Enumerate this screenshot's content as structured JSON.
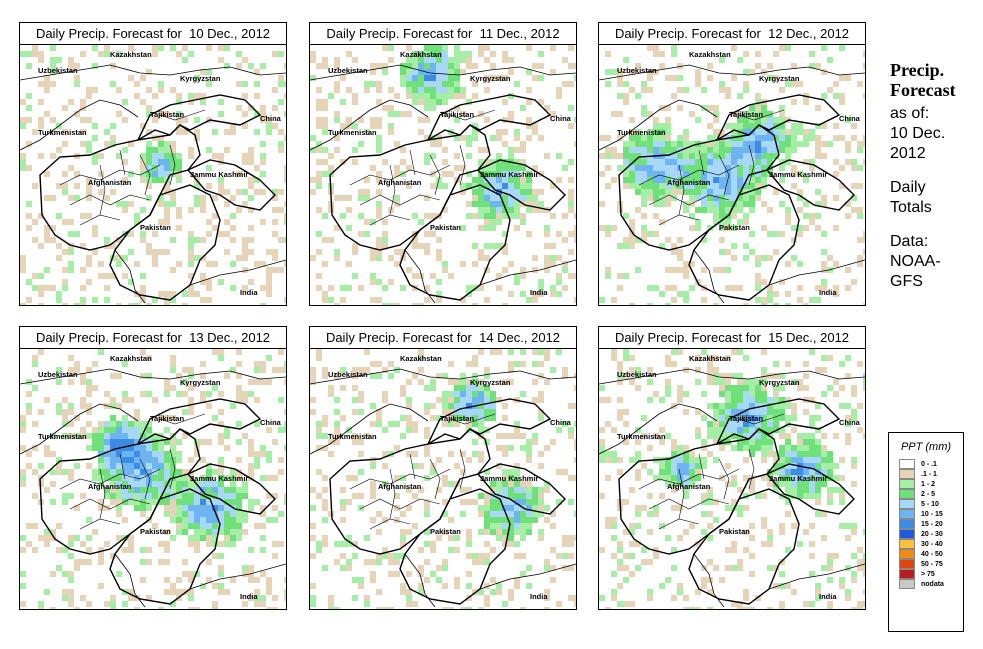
{
  "panels": [
    {
      "title": "Daily Precip. Forecast for  10 Dec., 2012",
      "intensity": 0
    },
    {
      "title": "Daily Precip. Forecast for  11 Dec., 2012",
      "intensity": 1
    },
    {
      "title": "Daily Precip. Forecast for  12 Dec., 2012",
      "intensity": 2
    },
    {
      "title": "Daily Precip. Forecast for  13 Dec., 2012",
      "intensity": 3
    },
    {
      "title": "Daily Precip. Forecast for  14 Dec., 2012",
      "intensity": 4
    },
    {
      "title": "Daily Precip. Forecast for  15 Dec., 2012",
      "intensity": 5
    }
  ],
  "map_labels": {
    "kazakhstan": "Kazakhstan",
    "uzbekistan": "Uzbekistan",
    "kyrgyzstan": "Kyrgyzstan",
    "tajikistan": "Tajikistan",
    "turkmenistan": "Turkmenistan",
    "china": "China",
    "afghanistan": "Afghanistan",
    "jammu_kashmir": "Jammu Kashmir",
    "pakistan": "Pakistan",
    "india": "India"
  },
  "side": {
    "title_line1": "Precip.",
    "title_line2": "Forecast",
    "asof_line1": "as of:",
    "asof_line2": "10 Dec.",
    "asof_line3": "2012",
    "totals_line1": "Daily",
    "totals_line2": "Totals",
    "data_line1": "Data:",
    "data_line2": "NOAA-",
    "data_line3": "GFS"
  },
  "legend": {
    "title": "PPT (mm)",
    "items": [
      {
        "label": "0 - .1",
        "color": "#ffffff"
      },
      {
        "label": ".1 - 1",
        "color": "#e6d4b8"
      },
      {
        "label": "1 - 2",
        "color": "#a6eea6"
      },
      {
        "label": "2 - 5",
        "color": "#6fe07a"
      },
      {
        "label": "5 - 10",
        "color": "#a8d8f8"
      },
      {
        "label": "10 - 15",
        "color": "#6eb4f0"
      },
      {
        "label": "15 - 20",
        "color": "#3c8ce6"
      },
      {
        "label": "20 - 30",
        "color": "#1e5adc"
      },
      {
        "label": "30 - 40",
        "color": "#f8c23c"
      },
      {
        "label": "40 - 50",
        "color": "#f08c14"
      },
      {
        "label": "50 - 75",
        "color": "#e04614"
      },
      {
        "label": "> 75",
        "color": "#b41e1e"
      },
      {
        "label": "nodata",
        "color": "#c8c8c8"
      }
    ]
  }
}
